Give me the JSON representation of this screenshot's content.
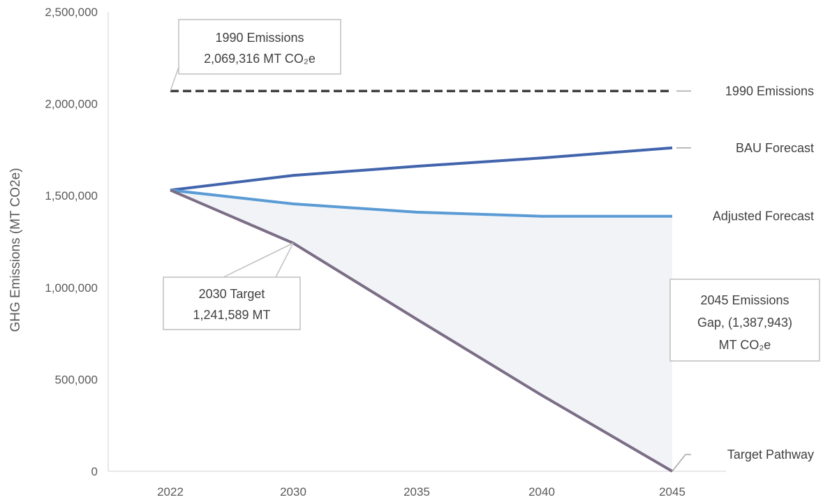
{
  "chart_data": {
    "type": "line",
    "title": "",
    "xlabel": "",
    "ylabel": "GHG Emissions (MT CO2e)",
    "categories": [
      "2022",
      "2030",
      "2035",
      "2040",
      "2045"
    ],
    "ylim": [
      0,
      2500000
    ],
    "yticks": [
      0,
      500000,
      1000000,
      1500000,
      2000000,
      2500000
    ],
    "ytick_labels": [
      "0",
      "500,000",
      "1,000,000",
      "1,500,000",
      "2,000,000",
      "2,500,000"
    ],
    "grid": false,
    "series": [
      {
        "name": "1990 Emissions",
        "values": [
          2069316,
          2069316,
          2069316,
          2069316,
          2069316
        ],
        "color": "#404040",
        "style": "dashed"
      },
      {
        "name": "BAU Forecast",
        "values": [
          1530000,
          1610000,
          1660000,
          1705000,
          1760000
        ],
        "color": "#4264AC",
        "style": "solid"
      },
      {
        "name": "Adjusted Forecast",
        "values": [
          1530000,
          1455000,
          1410000,
          1387943,
          1387943
        ],
        "color": "#5B9BD5",
        "style": "solid"
      },
      {
        "name": "Target Pathway",
        "values": [
          1530000,
          1241589,
          827726,
          413863,
          0
        ],
        "color": "#7B6D85",
        "style": "solid"
      }
    ],
    "shaded_gap": {
      "between": [
        "Adjusted Forecast",
        "Target Pathway"
      ],
      "color": "#F1F3F7"
    },
    "annotations": [
      {
        "id": "baseline",
        "lines": [
          "1990 Emissions",
          "2,069,316 MT CO₂e"
        ]
      },
      {
        "id": "target2030",
        "lines": [
          "2030 Target",
          "1,241,589 MT"
        ]
      },
      {
        "id": "gap2045",
        "lines": [
          "2045 Emissions",
          "Gap, (1,387,943)",
          "MT CO₂e"
        ]
      }
    ]
  }
}
